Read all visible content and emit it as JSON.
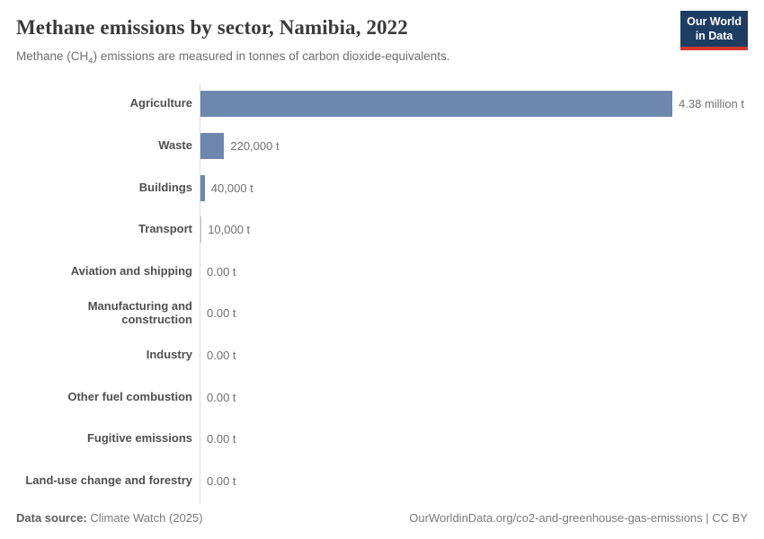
{
  "header": {
    "title": "Methane emissions by sector, Namibia, 2022",
    "subtitle_pre": "Methane (CH",
    "subtitle_sub": "4",
    "subtitle_post": ") emissions are measured in tonnes of carbon dioxide-equivalents.",
    "logo": {
      "line1": "Our World",
      "line2": "in Data"
    }
  },
  "chart_data": {
    "type": "bar",
    "orientation": "horizontal",
    "title": "Methane emissions by sector, Namibia, 2022",
    "unit": "tonnes of carbon dioxide-equivalents",
    "categories": [
      "Agriculture",
      "Waste",
      "Buildings",
      "Transport",
      "Aviation and shipping",
      "Manufacturing and construction",
      "Industry",
      "Other fuel combustion",
      "Fugitive emissions",
      "Land-use change and forestry"
    ],
    "values": [
      4380000,
      220000,
      40000,
      10000,
      0,
      0,
      0,
      0,
      0,
      0
    ],
    "value_labels": [
      "4.38 million t",
      "220,000 t",
      "40,000 t",
      "10,000 t",
      "0.00 t",
      "0.00 t",
      "0.00 t",
      "0.00 t",
      "0.00 t",
      "0.00 t"
    ],
    "xlim": [
      0,
      4380000
    ],
    "grid": false,
    "legend": "none",
    "bar_color": "#6e87ae",
    "bar_color_light": "#aebdd6",
    "axis_color": "#dcdcdc"
  },
  "colors": {
    "logo_bg": "#1d3d63",
    "logo_red": "#d2352b"
  },
  "footer": {
    "source_label": "Data source:",
    "source_value": " Climate Watch (2025)",
    "rights": "OurWorldinData.org/co2-and-greenhouse-gas-emissions | CC BY"
  }
}
